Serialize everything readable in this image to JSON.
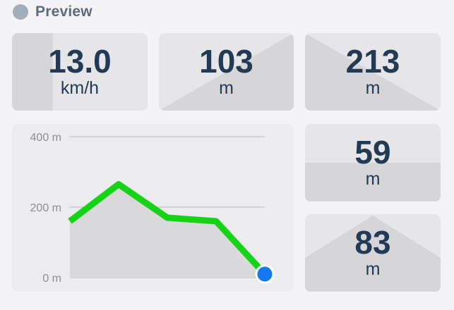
{
  "header": {
    "title": "Preview",
    "icon": "status-dot-icon"
  },
  "tiles": {
    "speed": {
      "value": "13.0",
      "unit": "km/h",
      "fill_fraction": 0.3
    },
    "dist1": {
      "value": "103",
      "unit": "m"
    },
    "dist2": {
      "value": "213",
      "unit": "m"
    },
    "dist3": {
      "value": "59",
      "unit": "m",
      "fill_fraction": 0.5
    },
    "dist4": {
      "value": "83",
      "unit": "m"
    }
  },
  "chart_data": {
    "type": "line",
    "x": [
      0,
      1,
      2,
      3,
      4
    ],
    "values": [
      160,
      265,
      170,
      160,
      10
    ],
    "ylim": [
      0,
      400
    ],
    "yticks": [
      0,
      200,
      400
    ],
    "ytick_labels": [
      "0 m",
      "200 m",
      "400 m"
    ],
    "grid": true,
    "line_color": "#17d317",
    "area_color": "#d9d9dc",
    "marker_color": "#1577f0"
  },
  "colors": {
    "value_text": "#233a55",
    "tile_bg": "#e6e6e9",
    "tile_shade": "#d6d6d9"
  }
}
